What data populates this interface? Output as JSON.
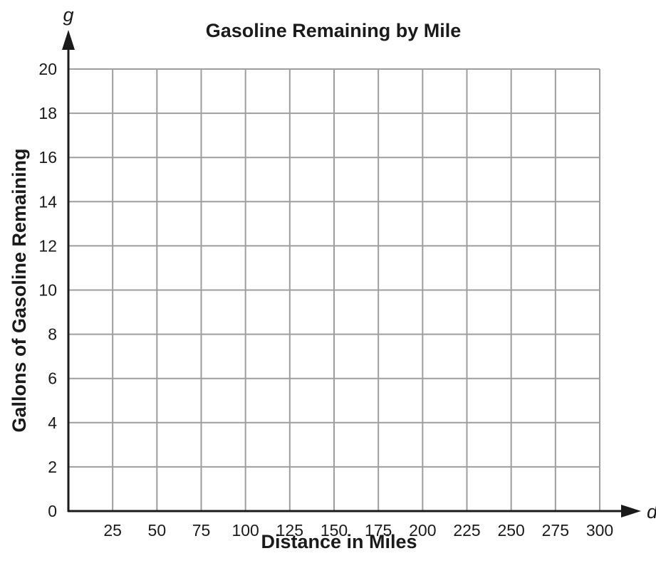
{
  "chart_data": {
    "type": "line",
    "title": "Gasoline Remaining by Mile",
    "xlabel": "Distance in Miles",
    "ylabel": "Gallons of Gasoline Remaining",
    "x_variable": "d",
    "y_variable": "g",
    "xlim": [
      0,
      300
    ],
    "ylim": [
      0,
      20
    ],
    "x_ticks": [
      25,
      50,
      75,
      100,
      125,
      150,
      175,
      200,
      225,
      250,
      275,
      300
    ],
    "y_ticks": [
      0,
      2,
      4,
      6,
      8,
      10,
      12,
      14,
      16,
      18,
      20
    ],
    "grid": true,
    "series": []
  },
  "colors": {
    "grid": "#9e9e9e",
    "axis": "#1a1a1a",
    "text": "#1a1a1a"
  }
}
